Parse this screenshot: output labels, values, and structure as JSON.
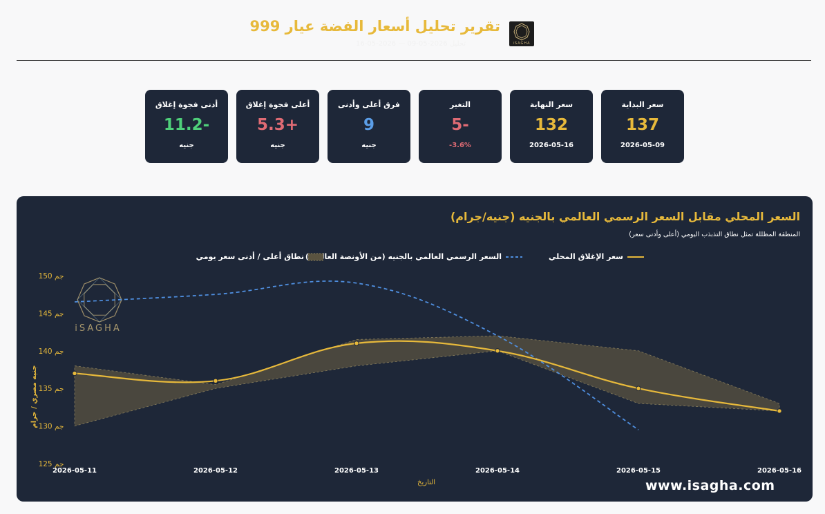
{
  "header": {
    "title": "تقرير تحليل أسعار الفضة عيار 999",
    "subtitle": "تحليل 2026-05-09 — 2026-05-16",
    "logo_text": "iSAGHA"
  },
  "cards": [
    {
      "label": "سعر البداية",
      "value": "137",
      "sub": "2026-05-09",
      "value_color": "#e7b93b",
      "sub_color": "#ffffff"
    },
    {
      "label": "سعر النهاية",
      "value": "132",
      "sub": "2026-05-16",
      "value_color": "#e7b93b",
      "sub_color": "#ffffff"
    },
    {
      "label": "التغير",
      "value": "-5",
      "sub": "-3.6%",
      "value_color": "#e06b74",
      "sub_color": "#e06b74"
    },
    {
      "label": "فرق أعلى وأدنى",
      "value": "9",
      "sub": "جنيه",
      "value_color": "#5b9ee8",
      "sub_color": "#ffffff"
    },
    {
      "label": "أعلى فجوة إغلاق",
      "value": "+5.3",
      "sub": "جنيه",
      "value_color": "#e06b74",
      "sub_color": "#ffffff"
    },
    {
      "label": "أدنى فجوة إغلاق",
      "value": "-11.2",
      "sub": "جنيه",
      "value_color": "#4fd07a",
      "sub_color": "#ffffff"
    }
  ],
  "panel": {
    "title": "السعر المحلي مقابل السعر الرسمي العالمي بالجنيه (جنيه/جرام)",
    "subtitle": "المنطقة المظللة تمثل نطاق التذبذب اليومي (أعلى وأدنى سعر)",
    "website": "www.isagha.com",
    "watermark": "iSAGHA"
  },
  "chart_data": {
    "type": "line",
    "x": [
      "2026-05-11",
      "2026-05-12",
      "2026-05-13",
      "2026-05-14",
      "2026-05-15",
      "2026-05-16"
    ],
    "series": [
      {
        "name": "سعر الإغلاق المحلي",
        "style": "solid",
        "color": "#e7b93b",
        "values": [
          137,
          136,
          141,
          140,
          135,
          132
        ]
      },
      {
        "name": "السعر الرسمي العالمي بالجنيه (من الأونصة العالمية)",
        "style": "dashed",
        "color": "#4f8fe0",
        "values": [
          146.5,
          147.5,
          149,
          142,
          129.5,
          null
        ]
      }
    ],
    "band": {
      "name": "نطاق أعلى / أدنى سعر يومي",
      "color": "#d8c06a",
      "high": [
        138,
        135.5,
        141.5,
        142,
        140,
        133
      ],
      "low": [
        130,
        135,
        138,
        140,
        133,
        132
      ]
    },
    "xlabel": "التاريخ",
    "ylabel": "جنيه مصري / جرام",
    "yticks": [
      "125 جم",
      "130 جم",
      "135 جم",
      "140 جم",
      "145 جم",
      "150 جم"
    ],
    "ytick_values": [
      125,
      130,
      135,
      140,
      145,
      150
    ],
    "ylim": [
      124,
      151
    ],
    "grid": false,
    "legend": "top"
  }
}
